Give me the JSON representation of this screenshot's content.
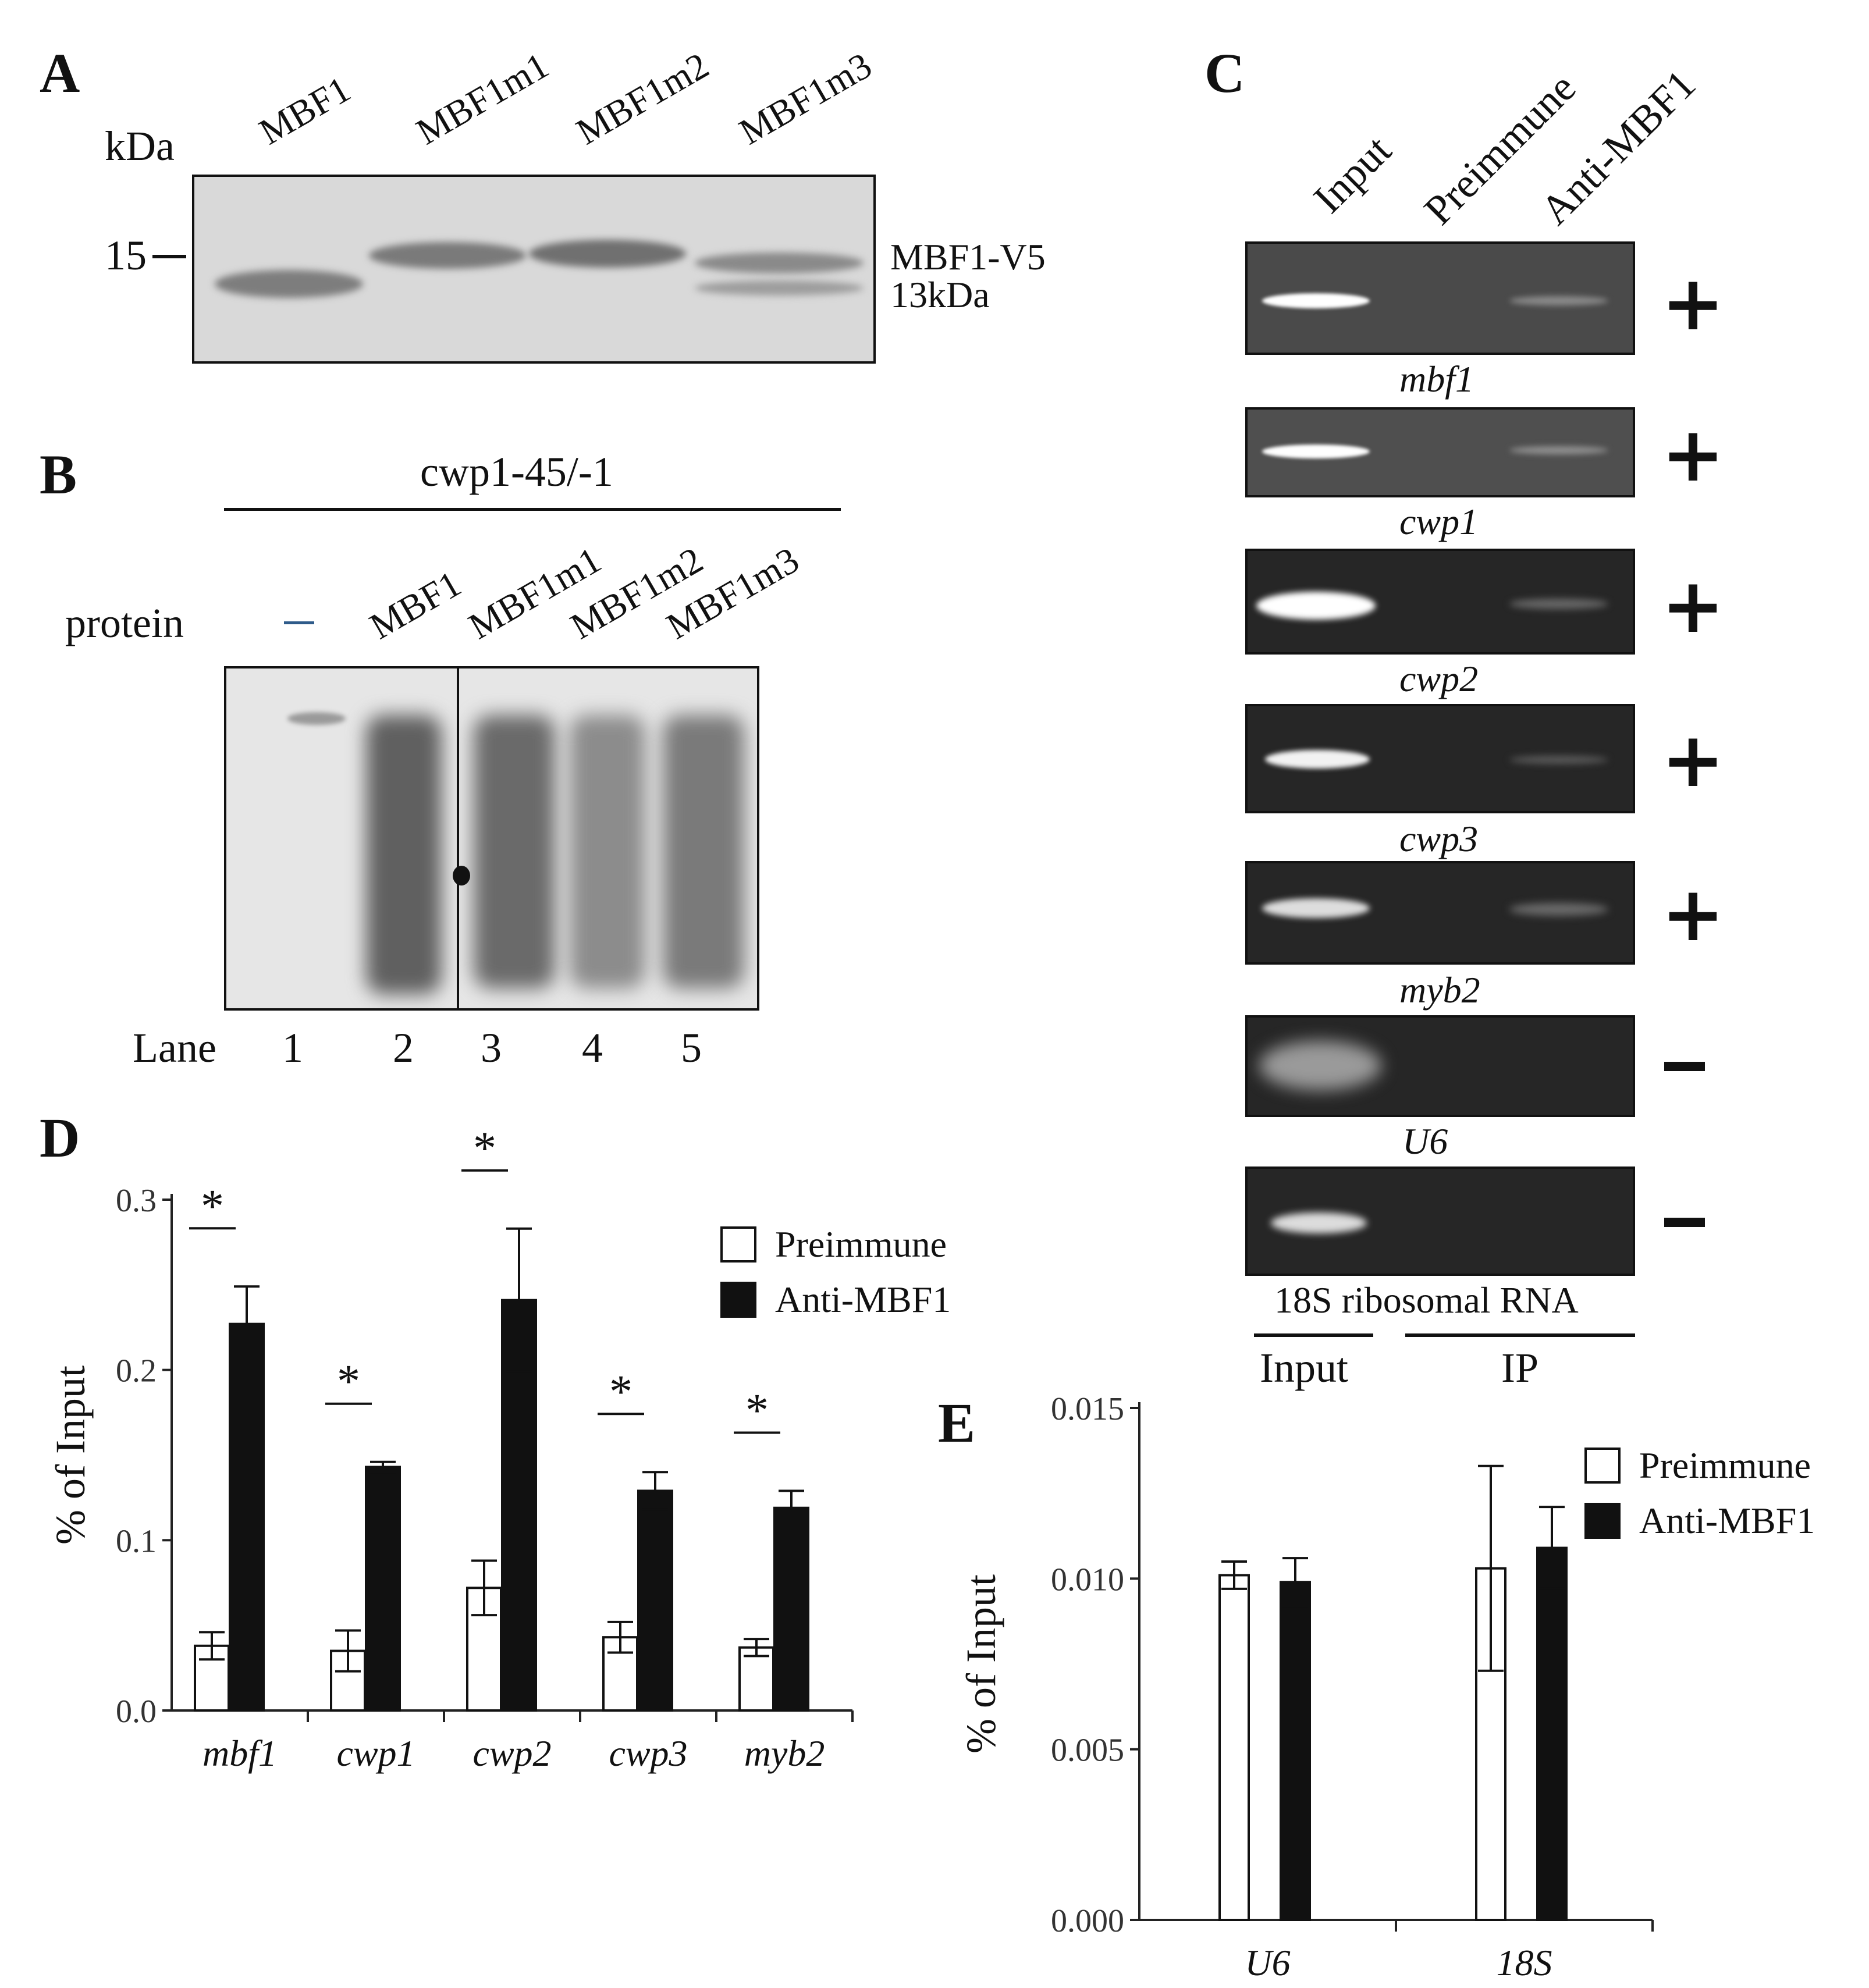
{
  "panelA": {
    "label": "A",
    "kda": "kDa",
    "marker": "15",
    "lanes": [
      "MBF1",
      "MBF1m1",
      "MBF1m2",
      "MBF1m3"
    ],
    "band_label1": "MBF1-V5",
    "band_label2": "13kDa"
  },
  "panelB": {
    "label": "B",
    "probe": "cwp1-45/-1",
    "protein_label": "protein",
    "no_protein": "—",
    "lanes": [
      "MBF1",
      "MBF1m1",
      "MBF1m2",
      "MBF1m3"
    ],
    "lane_label": "Lane",
    "lane_numbers": [
      "1",
      "2",
      "3",
      "4",
      "5"
    ]
  },
  "panelC": {
    "label": "C",
    "columns": [
      "Input",
      "Preimmune",
      "Anti-MBF1"
    ],
    "genes": [
      {
        "name": "mbf1",
        "result": "+"
      },
      {
        "name": "cwp1",
        "result": "+"
      },
      {
        "name": "cwp2",
        "result": "+"
      },
      {
        "name": "cwp3",
        "result": "+"
      },
      {
        "name": "myb2",
        "result": "+"
      },
      {
        "name": "U6",
        "result": "−"
      },
      {
        "name": "18S ribosomal RNA",
        "result": "−"
      }
    ],
    "group_input": "Input",
    "group_ip": "IP"
  },
  "panelD": {
    "label": "D",
    "ylabel": "% of Input",
    "yticks": [
      "0.0",
      "0.1",
      "0.2",
      "0.3"
    ],
    "legend": [
      "Preimmune",
      "Anti-MBF1"
    ],
    "significance": "*"
  },
  "panelE": {
    "label": "E",
    "ylabel": "% of Input",
    "yticks": [
      "0.000",
      "0.005",
      "0.010",
      "0.015"
    ],
    "legend": [
      "Preimmune",
      "Anti-MBF1"
    ]
  },
  "chart_data": [
    {
      "type": "bar",
      "categories": [
        "mbf1",
        "cwp1",
        "cwp2",
        "cwp3",
        "myb2"
      ],
      "series": [
        {
          "name": "Preimmune",
          "values": [
            0.038,
            0.035,
            0.072,
            0.043,
            0.037
          ],
          "errors": [
            0.008,
            0.012,
            0.016,
            0.009,
            0.005
          ],
          "color": "#ffffff"
        },
        {
          "name": "Anti-MBF1",
          "values": [
            0.227,
            0.143,
            0.241,
            0.129,
            0.119
          ],
          "errors": [
            0.022,
            0.003,
            0.042,
            0.011,
            0.01
          ],
          "color": "#111111"
        }
      ],
      "significant": [
        true,
        true,
        true,
        true,
        true
      ],
      "ylabel": "% of Input",
      "ylim": [
        0,
        0.3
      ],
      "legend": "top-right"
    },
    {
      "type": "bar",
      "categories": [
        "U6",
        "18S"
      ],
      "series": [
        {
          "name": "Preimmune",
          "values": [
            0.0101,
            0.0103
          ],
          "errors": [
            0.0004,
            0.003
          ],
          "color": "#ffffff"
        },
        {
          "name": "Anti-MBF1",
          "values": [
            0.0099,
            0.0109
          ],
          "errors": [
            0.0007,
            0.0012
          ],
          "color": "#111111"
        }
      ],
      "ylabel": "% of Input",
      "ylim": [
        0,
        0.015
      ],
      "legend": "top-right"
    }
  ]
}
